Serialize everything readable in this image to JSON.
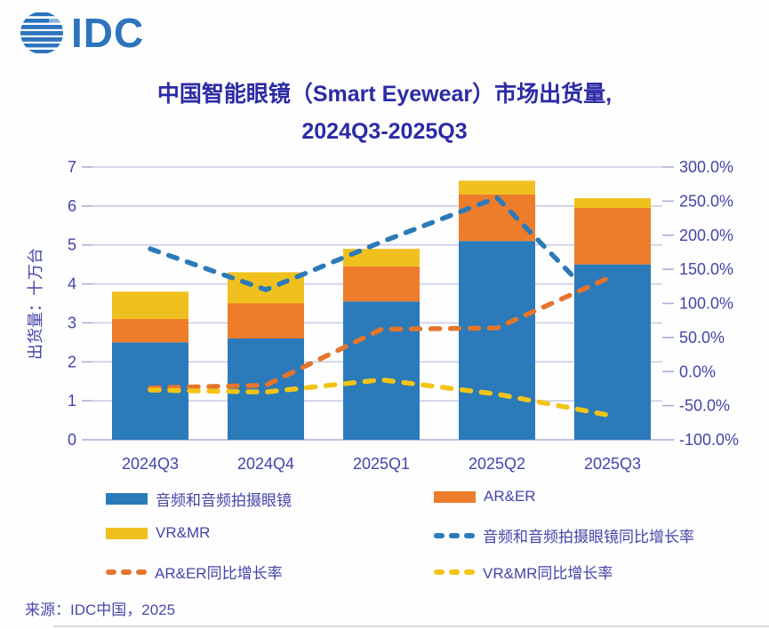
{
  "logo": {
    "text": "IDC"
  },
  "title": {
    "line1": "中国智能眼镜（Smart Eyewear）市场出货量,",
    "line2": "2024Q3-2025Q3"
  },
  "source": "来源：IDC中国，2025",
  "colors": {
    "bar_blue": "#2b7ab9",
    "bar_orange": "#ed7d2a",
    "bar_yellow": "#f0c11e",
    "line_blue": "#2b7ab9",
    "line_orange": "#e5752c",
    "line_yellow": "#f4c414",
    "grid": "#cbcbe8",
    "grid_zero": "#adadd6",
    "axis_text": "#4444aa",
    "title_text": "#2b2ba6",
    "logo_blue": "#2c74be"
  },
  "chart_data": {
    "type": "combo-stacked-bar-line",
    "categories": [
      "2024Q3",
      "2024Q4",
      "2025Q1",
      "2025Q2",
      "2025Q3"
    ],
    "bar_series": [
      {
        "name": "音频和音频拍摄眼镜",
        "color": "#2b7ab9",
        "axis": "left",
        "values": [
          2.5,
          2.6,
          3.55,
          5.1,
          4.5
        ]
      },
      {
        "name": "AR&ER",
        "color": "#ed7d2a",
        "axis": "left",
        "values": [
          0.6,
          0.9,
          0.9,
          1.2,
          1.45
        ]
      },
      {
        "name": "VR&MR",
        "color": "#f0c11e",
        "axis": "left",
        "values": [
          0.7,
          0.8,
          0.45,
          0.35,
          0.25
        ]
      }
    ],
    "line_series": [
      {
        "name": "音频和音频拍摄眼镜同比增长率",
        "color": "#2b7ab9",
        "axis": "right",
        "style": "dashed",
        "values": [
          180,
          120,
          190,
          255,
          80
        ]
      },
      {
        "name": "AR&ER同比增长率",
        "color": "#e5752c",
        "axis": "right",
        "style": "dashed",
        "values": [
          -24,
          -20,
          62,
          64,
          140
        ]
      },
      {
        "name": "VR&MR同比增长率",
        "color": "#f4c414",
        "axis": "right",
        "style": "dashed",
        "values": [
          -27,
          -30,
          -12,
          -33,
          -65
        ]
      }
    ],
    "left_axis": {
      "title": "出货量：十万台",
      "min": 0,
      "max": 7,
      "step": 1,
      "ticks": [
        {
          "value": 0,
          "label": "0"
        },
        {
          "value": 1,
          "label": "1"
        },
        {
          "value": 2,
          "label": "2"
        },
        {
          "value": 3,
          "label": "3"
        },
        {
          "value": 4,
          "label": "4"
        },
        {
          "value": 5,
          "label": "5"
        },
        {
          "value": 6,
          "label": "6"
        },
        {
          "value": 7,
          "label": "7"
        }
      ]
    },
    "right_axis": {
      "min": -100,
      "max": 300,
      "step": 50,
      "ticks": [
        {
          "value": 300,
          "label": "300.0%"
        },
        {
          "value": 250,
          "label": "250.0%"
        },
        {
          "value": 200,
          "label": "200.0%"
        },
        {
          "value": 150,
          "label": "150.0%"
        },
        {
          "value": 100,
          "label": "100.0%"
        },
        {
          "value": 50,
          "label": "50.0%"
        },
        {
          "value": 0,
          "label": "0.0%"
        },
        {
          "value": -50,
          "label": "-50.0%"
        },
        {
          "value": -100,
          "label": "-100.0%"
        }
      ]
    },
    "grid": true,
    "legend_position": "bottom"
  },
  "legend": {
    "items": [
      {
        "label": "音频和音频拍摄眼镜",
        "swatch": "bar",
        "color": "#2b7ab9"
      },
      {
        "label": "AR&ER",
        "swatch": "bar",
        "color": "#ed7d2a"
      },
      {
        "label": "VR&MR",
        "swatch": "bar",
        "color": "#f0c11e"
      },
      {
        "label": "音频和音频拍摄眼镜同比增长率",
        "swatch": "line",
        "color": "#2b7ab9"
      },
      {
        "label": "AR&ER同比增长率",
        "swatch": "line",
        "color": "#e5752c"
      },
      {
        "label": "VR&MR同比增长率",
        "swatch": "line",
        "color": "#f4c414"
      }
    ]
  }
}
